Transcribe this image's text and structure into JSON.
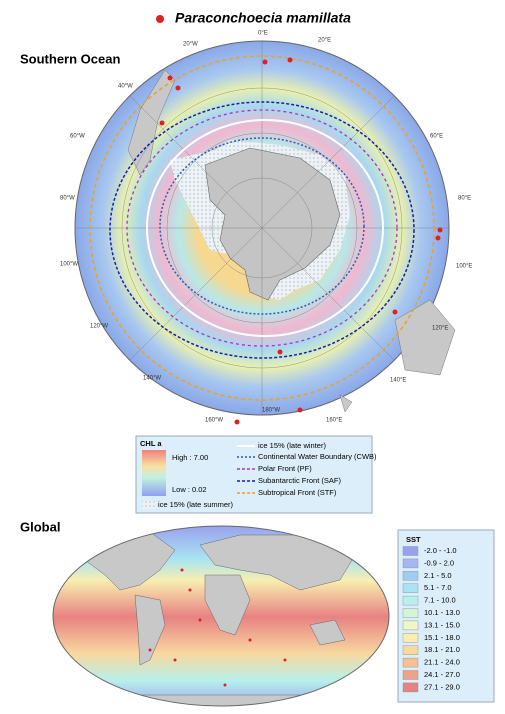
{
  "title": "Paraconchoecia mamillata",
  "southern_ocean": {
    "title": "Southern Ocean",
    "longitude_labels": [
      "0°E",
      "20°E",
      "60°E",
      "80°E",
      "100°E",
      "120°E",
      "140°E",
      "160°E",
      "180°W",
      "160°W",
      "140°W",
      "120°W",
      "100°W",
      "80°W",
      "60°W",
      "40°W",
      "20°W"
    ]
  },
  "chl_legend": {
    "title": "CHL a",
    "high": "High : 7.00",
    "low": "Low : 0.02",
    "ice_summer": "ice 15% (late summer)",
    "lines": [
      "ice 15% (late winter)",
      "Continental Water Boundary (CWB)",
      "Polar Front (PF)",
      "Subantarctic Front (SAF)",
      "Subtropical Front (STF)"
    ]
  },
  "global": {
    "title": "Global"
  },
  "sst_legend": {
    "title": "SST",
    "classes": [
      {
        "label": "-2.0 - -1.0",
        "color": "#9aa2ee"
      },
      {
        "label": "-0.9 - 2.0",
        "color": "#a6b6f2"
      },
      {
        "label": "2.1 - 5.0",
        "color": "#9ccdf2"
      },
      {
        "label": "5.1 - 7.0",
        "color": "#a8e4f2"
      },
      {
        "label": "7.1 - 10.0",
        "color": "#b8f0ec"
      },
      {
        "label": "10.1 - 13.0",
        "color": "#d4f6d4"
      },
      {
        "label": "13.1 - 15.0",
        "color": "#eef8c4"
      },
      {
        "label": "15.1 - 18.0",
        "color": "#f8eeb0"
      },
      {
        "label": "18.1 - 21.0",
        "color": "#f8d8a0"
      },
      {
        "label": "21.1 - 24.0",
        "color": "#f6c092"
      },
      {
        "label": "24.1 - 27.0",
        "color": "#f0a288"
      },
      {
        "label": "27.1 - 29.0",
        "color": "#e88282"
      }
    ]
  }
}
